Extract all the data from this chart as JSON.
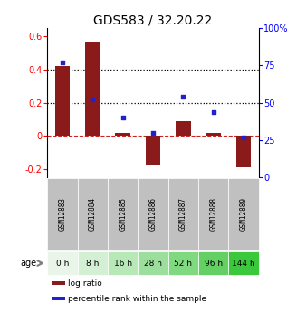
{
  "title": "GDS583 / 32.20.22",
  "samples": [
    "GSM12883",
    "GSM12884",
    "GSM12885",
    "GSM12886",
    "GSM12887",
    "GSM12888",
    "GSM12889"
  ],
  "ages": [
    "0 h",
    "8 h",
    "16 h",
    "28 h",
    "52 h",
    "96 h",
    "144 h"
  ],
  "log_ratio": [
    0.42,
    0.57,
    0.02,
    -0.17,
    0.09,
    0.02,
    -0.19
  ],
  "percentile_rank": [
    77,
    52,
    40,
    30,
    54,
    44,
    27
  ],
  "bar_color": "#8b1a1a",
  "dot_color": "#2222cc",
  "ylim_left": [
    -0.25,
    0.65
  ],
  "ylim_right": [
    0,
    100
  ],
  "yticks_left": [
    -0.2,
    0.0,
    0.2,
    0.4,
    0.6
  ],
  "yticks_right": [
    0,
    25,
    50,
    75,
    100
  ],
  "ytick_labels_left": [
    "-0.2",
    "0",
    "0.2",
    "0.4",
    "0.6"
  ],
  "ytick_labels_right": [
    "0",
    "25",
    "50",
    "75",
    "100%"
  ],
  "hlines": [
    0.2,
    0.4
  ],
  "hline_zero_color": "#cc2222",
  "sample_box_color": "#c0c0c0",
  "age_colors": [
    "#e8f5e8",
    "#d4efd4",
    "#b8e8b8",
    "#9cdf9c",
    "#80d880",
    "#64d064",
    "#3cc83c"
  ],
  "legend_red": "log ratio",
  "legend_blue": "percentile rank within the sample",
  "xlabel_age": "age"
}
